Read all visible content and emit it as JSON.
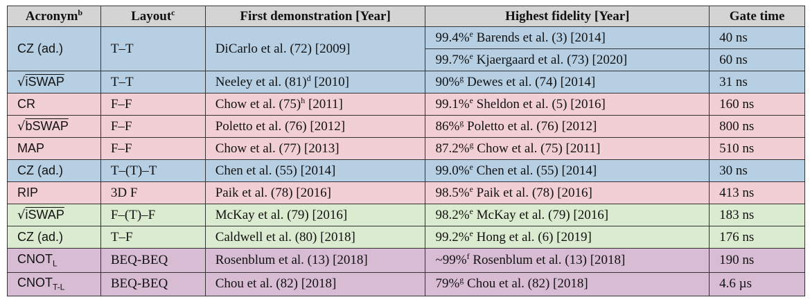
{
  "headers": [
    {
      "label": "Acronym",
      "sup": "b"
    },
    {
      "label": "Layout",
      "sup": "c"
    },
    {
      "label": "First demonstration [Year]",
      "sup": ""
    },
    {
      "label": "Highest fidelity [Year]",
      "sup": ""
    },
    {
      "label": "Gate time",
      "sup": ""
    }
  ],
  "rows": [
    {
      "acronym": "CZ (ad.)",
      "layout": "T–T",
      "first": "DiCarlo et al. (72) [2009]",
      "first_sup": "",
      "first_rest": "",
      "fid1": "99.4%",
      "fid1_sup": "e",
      "fid1_rest": " Barends et al. (3) [2014]",
      "time1": "40 ns",
      "fid2": "99.7%",
      "fid2_sup": "e",
      "fid2_rest": " Kjaergaard et al. (73) [2020]",
      "time2": "60 ns"
    },
    {
      "acronym_root": "iSWAP",
      "layout": "T–T",
      "first": "Neeley et al. (81)",
      "first_sup": "d",
      "first_rest": " [2010]",
      "fid": "90%",
      "fid_sup": "g",
      "fid_rest": " Dewes et al. (74) [2014]",
      "time": "31 ns"
    },
    {
      "acronym": "CR",
      "layout": "F–F",
      "first": "Chow et al. (75)",
      "first_sup": "h",
      "first_rest": " [2011]",
      "fid": "99.1%",
      "fid_sup": "e",
      "fid_rest": " Sheldon et al. (5) [2016]",
      "time": "160 ns"
    },
    {
      "acronym_root": "bSWAP",
      "layout": "F–F",
      "first": "Poletto et al. (76) [2012]",
      "fid": "86%",
      "fid_sup": "g",
      "fid_rest": " Poletto et al. (76) [2012]",
      "time": "800 ns"
    },
    {
      "acronym": "MAP",
      "layout": "F–F",
      "first": "Chow et al. (77) [2013]",
      "fid": "87.2%",
      "fid_sup": "g",
      "fid_rest": " Chow et al. (75) [2011]",
      "time": "510 ns"
    },
    {
      "acronym": "CZ (ad.)",
      "layout": "T–(T)–T",
      "first": "Chen et al. (55) [2014]",
      "fid": "99.0%",
      "fid_sup": "e",
      "fid_rest": " Chen et al. (55) [2014]",
      "time": "30 ns"
    },
    {
      "acronym": "RIP",
      "layout": "3D F",
      "first": "Paik et al. (78) [2016]",
      "fid": "98.5%",
      "fid_sup": "e",
      "fid_rest": " Paik et al. (78) [2016]",
      "time": "413 ns"
    },
    {
      "acronym_root": "iSWAP",
      "layout": "F–(T)–F",
      "first": "McKay et al. (79) [2016]",
      "fid": "98.2%",
      "fid_sup": "e",
      "fid_rest": " McKay et al. (79) [2016]",
      "time": "183 ns"
    },
    {
      "acronym": "CZ (ad.)",
      "layout": "T–F",
      "first": "Caldwell et al. (80) [2018]",
      "fid": "99.2%",
      "fid_sup": "e",
      "fid_rest": " Hong et al. (6) [2019]",
      "time": "176 ns"
    },
    {
      "acronym": "CNOT",
      "acronym_sub": "L",
      "layout": "BEQ-BEQ",
      "first": "Rosenblum et al. (13) [2018]",
      "fid": "~99%",
      "fid_sup": "f",
      "fid_rest": " Rosenblum et al. (13) [2018]",
      "time": "190 ns"
    },
    {
      "acronym": "CNOT",
      "acronym_sub": "T-L",
      "layout": "BEQ-BEQ",
      "first": "Chou et al. (82) [2018]",
      "fid": "79%",
      "fid_sup": "g",
      "fid_rest": " Chou et al. (82) [2018]",
      "time": "4.6 µs"
    }
  ],
  "sqrt_symbol": "√",
  "colors": {
    "blue": "#b6cfe3",
    "pink": "#f2cfd4",
    "green": "#dbebcf",
    "purple": "#d8bcd3",
    "header": "#d4d4d4"
  }
}
